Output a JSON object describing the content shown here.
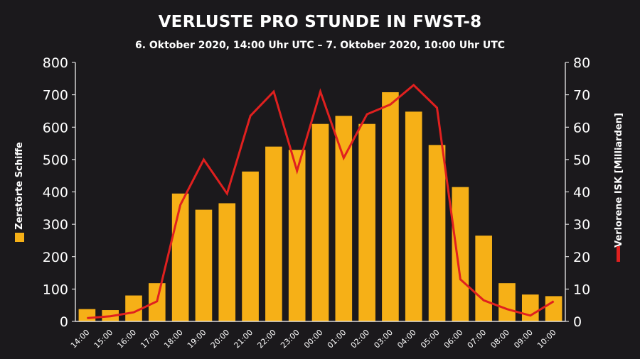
{
  "title": "VERLUSTE PRO STUNDE IN FWST-8",
  "subtitle": "6. Oktober 2020, 14:00 Uhr UTC – 7. Oktober 2020, 10:00 Uhr UTC",
  "colors": {
    "bars": "#f6b017",
    "line": "#e0201f",
    "grid": "#ffffff"
  },
  "chart_data": {
    "type": "bar",
    "categories": [
      "14:00",
      "15:00",
      "16:00",
      "17:00",
      "18:00",
      "19:00",
      "20:00",
      "21:00",
      "22:00",
      "23:00",
      "00:00",
      "01:00",
      "02:00",
      "03:00",
      "04:00",
      "05:00",
      "06:00",
      "07:00",
      "08:00",
      "09:00",
      "10:00"
    ],
    "series": [
      {
        "name": "Zerstörte Schiffe",
        "type": "bar",
        "axis": "left",
        "values": [
          38,
          35,
          80,
          118,
          395,
          345,
          365,
          463,
          540,
          530,
          610,
          635,
          610,
          708,
          648,
          545,
          415,
          265,
          118,
          83,
          78
        ]
      },
      {
        "name": "Verlorene ISK [Milliarden]",
        "type": "line",
        "axis": "right",
        "values": [
          1,
          1.6,
          2.8,
          6.2,
          36,
          50,
          39.5,
          63.5,
          71,
          46.5,
          71,
          50.5,
          64,
          67,
          73,
          66,
          13,
          6.5,
          3.8,
          1.8,
          6.2
        ]
      }
    ],
    "y_left": {
      "label": "Zerstörte Schiffe",
      "ylim": [
        0,
        800
      ],
      "ticks": [
        0,
        100,
        200,
        300,
        400,
        500,
        600,
        700,
        800
      ]
    },
    "y_right": {
      "label": "Verlorene ISK [Milliarden]",
      "ylim": [
        0,
        80
      ],
      "ticks": [
        0,
        10,
        20,
        30,
        40,
        50,
        60,
        70,
        80
      ]
    },
    "grid": false
  }
}
